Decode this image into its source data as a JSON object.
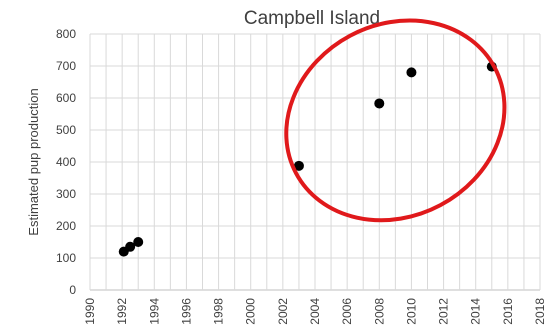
{
  "chart_data": {
    "type": "scatter",
    "title": "Campbell Island",
    "xlabel": "",
    "ylabel": "Estimated pup production",
    "xlim": [
      1990,
      2018
    ],
    "ylim": [
      0,
      800
    ],
    "xticks": [
      1990,
      1992,
      1994,
      1996,
      1998,
      2000,
      2002,
      2004,
      2006,
      2008,
      2010,
      2012,
      2014,
      2016,
      2018
    ],
    "yticks": [
      0,
      100,
      200,
      300,
      400,
      500,
      600,
      700,
      800
    ],
    "grid": true,
    "series": [
      {
        "points": [
          {
            "x": 1992.1,
            "y": 120
          },
          {
            "x": 1992.5,
            "y": 135
          },
          {
            "x": 1993.0,
            "y": 150
          },
          {
            "x": 2003.0,
            "y": 388
          },
          {
            "x": 2008.0,
            "y": 583
          },
          {
            "x": 2010.0,
            "y": 680
          },
          {
            "x": 2015.0,
            "y": 698
          }
        ],
        "connected_segments": [
          [
            0,
            1,
            2
          ]
        ]
      }
    ],
    "annotations": [
      {
        "type": "ellipse-highlight",
        "color": "#e0191b",
        "covers_x": [
          2002,
          2016
        ],
        "covers_y": [
          230,
          830
        ]
      }
    ],
    "colors": {
      "points": "#000000",
      "highlight": "#e0191b",
      "grid": "#d9d9d9"
    }
  }
}
